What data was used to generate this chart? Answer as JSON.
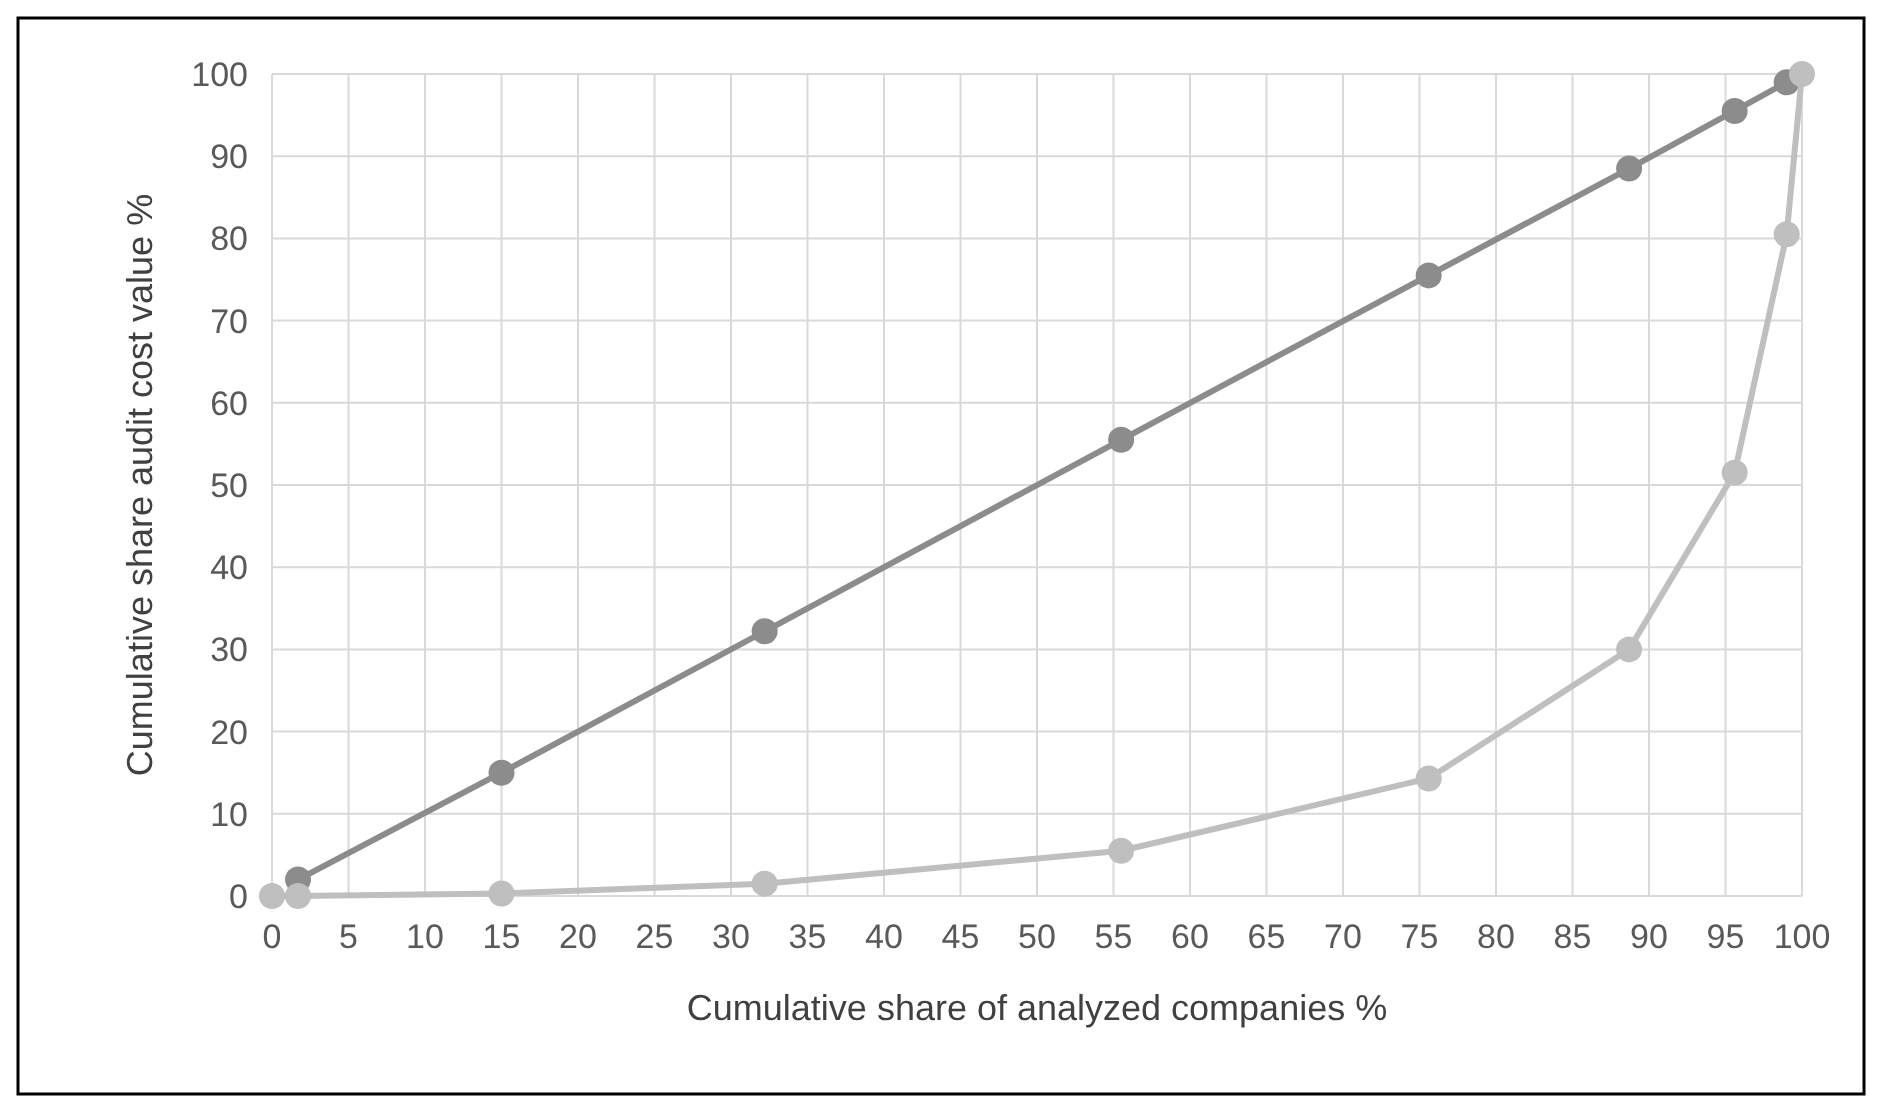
{
  "chart_data": {
    "type": "line",
    "xlabel": "Cumulative share of analyzed companies %",
    "ylabel": "Cumulative share audit cost value %",
    "xlim": [
      0,
      100
    ],
    "xticks": [
      0,
      5,
      10,
      15,
      20,
      25,
      30,
      35,
      40,
      45,
      50,
      55,
      60,
      65,
      70,
      75,
      80,
      85,
      90,
      95,
      100
    ],
    "ylim": [
      0,
      100
    ],
    "yticks": [
      0,
      10,
      20,
      30,
      40,
      50,
      60,
      70,
      80,
      90,
      100
    ],
    "grid": true,
    "marker": "circle",
    "series": [
      {
        "color": "#8c8c8c",
        "x": [
          1.7,
          15,
          32.2,
          55.5,
          75.6,
          88.7,
          95.6,
          99
        ],
        "values": [
          2,
          15,
          32.2,
          55.5,
          75.5,
          88.5,
          95.5,
          99
        ]
      },
      {
        "color": "#bfbfbf",
        "x": [
          0,
          1.7,
          15,
          32.2,
          55.5,
          75.6,
          88.7,
          95.6,
          99,
          100
        ],
        "values": [
          0,
          0,
          0.3,
          1.5,
          5.5,
          14.3,
          30,
          51.5,
          80.5,
          100
        ]
      }
    ]
  }
}
